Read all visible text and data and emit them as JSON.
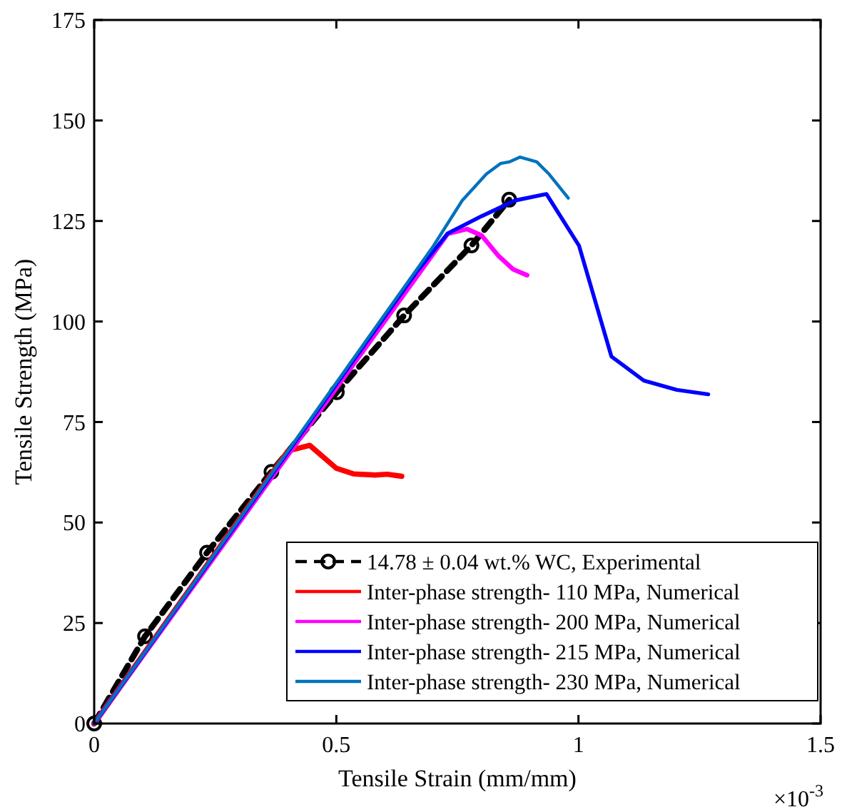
{
  "chart_data": {
    "type": "line",
    "xlabel": "Tensile Strain (mm/mm)",
    "ylabel": "Tensile Strength (MPa)",
    "xlim": [
      0,
      1.5
    ],
    "xticks": [
      0,
      0.5,
      1,
      1.5
    ],
    "ylim": [
      0,
      175
    ],
    "yticks": [
      0,
      25,
      50,
      75,
      100,
      125,
      150,
      175
    ],
    "grid": false,
    "legend": "bottom right",
    "annotations": [
      "×10$^{-3}$"
    ],
    "series": [
      {
        "name": "14.78 ± 0.04 wt.% WC, Experimental",
        "color": "#000000",
        "line_style": "dashed",
        "marker": "circle",
        "x": [
          0,
          0.105,
          0.233,
          0.366,
          0.501,
          0.64,
          0.779,
          0.857
        ],
        "values": [
          0,
          21.7,
          42.5,
          62.6,
          82.4,
          101.5,
          118.9,
          130.3
        ]
      },
      {
        "name": "Inter-phase strength- 110 MPa, Numerical",
        "color": "#ff0000",
        "line_style": "solid",
        "marker": "none",
        "x": [
          0,
          0.4,
          0.445,
          0.5,
          0.535,
          0.58,
          0.605,
          0.635
        ],
        "values": [
          0,
          67.8,
          69.2,
          63.5,
          62.1,
          61.8,
          62.0,
          61.5
        ]
      },
      {
        "name": "Inter-phase strength- 200 MPa, Numerical",
        "color": "#ff00ff",
        "line_style": "solid",
        "marker": "none",
        "x": [
          0,
          0.73,
          0.77,
          0.8,
          0.835,
          0.865,
          0.894
        ],
        "values": [
          0,
          121.8,
          123.0,
          121.4,
          116.3,
          113,
          111.5
        ]
      },
      {
        "name": "Inter-phase strength- 215 MPa, Numerical",
        "color": "#0000ff",
        "line_style": "solid",
        "marker": "none",
        "x": [
          0,
          0.665,
          0.73,
          0.8,
          0.869,
          0.934,
          1.001,
          1.068,
          1.135,
          1.203,
          1.268
        ],
        "values": [
          0,
          112.2,
          121.9,
          126.2,
          130.1,
          131.7,
          118.9,
          91.3,
          85.3,
          83.0,
          81.9
        ]
      },
      {
        "name": "Inter-phase strength- 230 MPa, Numerical",
        "color": "#0072bd",
        "line_style": "solid",
        "marker": "none",
        "x": [
          0,
          0.7,
          0.76,
          0.81,
          0.839,
          0.857,
          0.879,
          0.914,
          0.939,
          0.979
        ],
        "values": [
          0,
          118.7,
          130.1,
          136.7,
          139.3,
          139.7,
          140.9,
          139.7,
          136.7,
          130.7
        ]
      }
    ]
  }
}
